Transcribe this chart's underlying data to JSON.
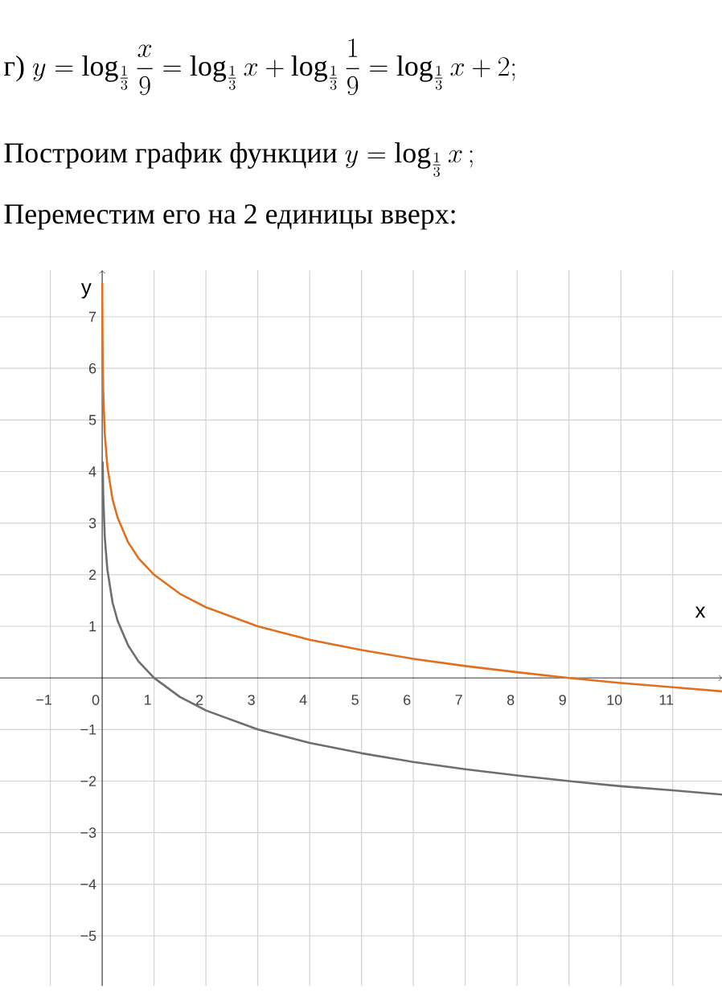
{
  "chart_data": {
    "type": "line",
    "annotations": [
      "г)",
      "y=\\log_{\\frac{1}{3}}\\frac{x}{9}=\\log_{\\frac{1}{3}}x+\\log_{\\frac{1}{3}}\\frac{1}{9}=\\log_{\\frac{1}{3}}x+2;",
      "Построим график функции",
      "y=\\log_{\\frac{1}{3}}x\\,;",
      "Переместим его на 2 единицы вверх:"
    ],
    "xlabel": "x",
    "ylabel": "y",
    "x": [
      0.01,
      0.02,
      0.05,
      0.1,
      0.2,
      0.3,
      0.5,
      0.7,
      1,
      1.5,
      2,
      3,
      4,
      5,
      6,
      7,
      8,
      9,
      10,
      11,
      11.95
    ],
    "series": [
      {
        "color": "#6e6e6e",
        "values": [
          4.19,
          3.56,
          2.73,
          2.1,
          1.46,
          1.1,
          0.63,
          0.32,
          0,
          -0.37,
          -0.63,
          -1,
          -1.26,
          -1.46,
          -1.63,
          -1.77,
          -1.89,
          -2,
          -2.1,
          -2.18,
          -2.26
        ]
      },
      {
        "color": "#e07020",
        "x": [
          0.002,
          0.005,
          0.01,
          0.02,
          0.05,
          0.1,
          0.2,
          0.3,
          0.5,
          0.7,
          1,
          1.5,
          2,
          3,
          4,
          5,
          6,
          7,
          8,
          9,
          10,
          11,
          11.95
        ],
        "values": [
          7.66,
          6.82,
          6.19,
          5.56,
          4.73,
          4.1,
          3.46,
          3.1,
          2.63,
          2.32,
          2,
          1.63,
          1.37,
          1,
          0.74,
          0.54,
          0.37,
          0.23,
          0.11,
          0,
          -0.1,
          -0.18,
          -0.26
        ]
      }
    ],
    "xlim": [
      -1.97,
      11.95
    ],
    "ylim": [
      -5.97,
      7.9
    ],
    "xticks": [
      {
        "value": -1,
        "label": "−1"
      },
      0,
      1,
      2,
      3,
      4,
      5,
      6,
      7,
      8,
      9,
      10,
      11
    ],
    "yticks": [
      {
        "value": -5,
        "label": "−5"
      },
      {
        "value": -4,
        "label": "−4"
      },
      {
        "value": -3,
        "label": "−3"
      },
      {
        "value": -2,
        "label": "−2"
      },
      {
        "value": -1,
        "label": "−1"
      },
      1,
      2,
      3,
      4,
      5,
      6,
      7
    ],
    "grid": true,
    "marker": "none"
  }
}
